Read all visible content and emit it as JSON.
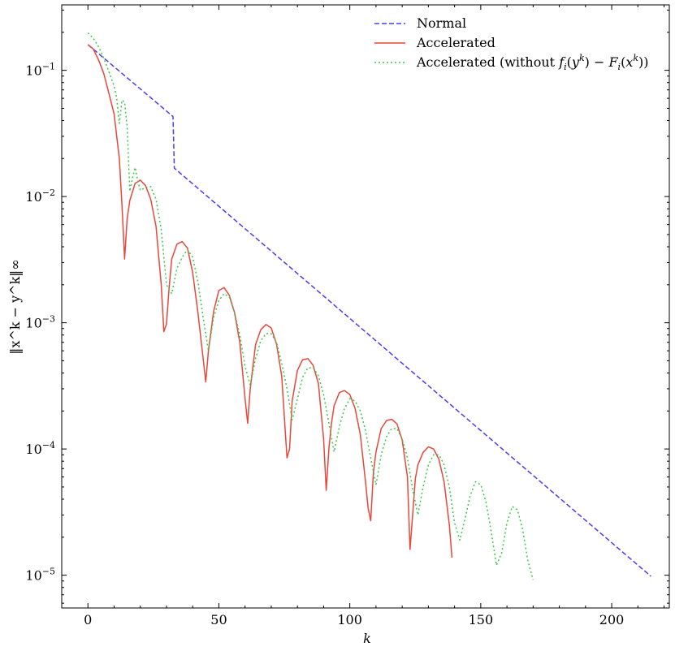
{
  "chart_data": {
    "type": "line",
    "xlabel": "k",
    "ylabel": "‖x^k − y^k‖∞",
    "y_scale": "log",
    "xlim": [
      -10,
      222
    ],
    "ylim": [
      5.5e-06,
      0.33
    ],
    "x_ticks": [
      0,
      50,
      100,
      150,
      200
    ],
    "y_ticks": [
      {
        "value": 0.1,
        "base": "10",
        "exp": "−1"
      },
      {
        "value": 0.01,
        "base": "10",
        "exp": "−2"
      },
      {
        "value": 0.001,
        "base": "10",
        "exp": "−3"
      },
      {
        "value": 0.0001,
        "base": "10",
        "exp": "−4"
      },
      {
        "value": 1e-05,
        "base": "10",
        "exp": "−5"
      }
    ],
    "grid": false,
    "legend_position": "top-right",
    "series": [
      {
        "name": "Normal",
        "color": "#4a3cf5",
        "style": "dashed",
        "x": [
          0,
          32.5,
          33,
          215
        ],
        "y": [
          0.16,
          0.043,
          0.0168,
          9.8e-06
        ]
      },
      {
        "name": "Accelerated",
        "color": "#e8473b",
        "style": "solid",
        "x": [
          0,
          2,
          4,
          6,
          8,
          10,
          11,
          12,
          13,
          14,
          15,
          16,
          18,
          20,
          22,
          24,
          26,
          28,
          29,
          30,
          31,
          32,
          34,
          36,
          38,
          40,
          42,
          44,
          45,
          46,
          48,
          50,
          52,
          54,
          56,
          58,
          60,
          61,
          62,
          64,
          66,
          68,
          70,
          72,
          74,
          76,
          77,
          78,
          80,
          82,
          84,
          86,
          88,
          90,
          91,
          92,
          93,
          94,
          96,
          98,
          100,
          102,
          104,
          106,
          107,
          108,
          109,
          110,
          112,
          114,
          116,
          118,
          120,
          122,
          123,
          124,
          125,
          126,
          128,
          130,
          132,
          134,
          136,
          138,
          139
        ],
        "y": [
          0.16,
          0.148,
          0.122,
          0.095,
          0.066,
          0.045,
          0.03,
          0.02,
          0.0085,
          0.0032,
          0.0067,
          0.0093,
          0.0127,
          0.0135,
          0.0122,
          0.0095,
          0.0058,
          0.002,
          0.00085,
          0.00098,
          0.0019,
          0.0032,
          0.0042,
          0.0044,
          0.0039,
          0.0025,
          0.0012,
          0.00052,
          0.00034,
          0.0006,
          0.00123,
          0.0018,
          0.0019,
          0.00165,
          0.0012,
          0.0007,
          0.00025,
          0.00016,
          0.0003,
          0.00067,
          0.00088,
          0.00097,
          0.00091,
          0.00068,
          0.00038,
          8.5e-05,
          0.0001,
          0.00024,
          0.00042,
          0.00051,
          0.00052,
          0.00046,
          0.00033,
          0.00012,
          4.7e-05,
          0.0001,
          0.00016,
          0.00022,
          0.00028,
          0.00029,
          0.00027,
          0.00021,
          0.00013,
          5.5e-05,
          3.4e-05,
          2.7e-05,
          6.5e-05,
          9.5e-05,
          0.000145,
          0.000168,
          0.000172,
          0.000158,
          0.000118,
          6e-05,
          1.6e-05,
          3e-05,
          5.8e-05,
          7.5e-05,
          9.4e-05,
          0.000104,
          0.0001,
          8.3e-05,
          5.5e-05,
          2.5e-05,
          1.38e-05
        ]
      },
      {
        "name": "Accelerated (without f_i(y^k) − F_i(x^k))",
        "color": "#3cc74b",
        "style": "dotted",
        "x": [
          0,
          2,
          4,
          6,
          8,
          10,
          11,
          12,
          13,
          14,
          15,
          16,
          17,
          18,
          19,
          20,
          22,
          24,
          26,
          28,
          30,
          32,
          34,
          36,
          38,
          40,
          42,
          44,
          46,
          48,
          50,
          52,
          54,
          56,
          58,
          60,
          62,
          64,
          66,
          68,
          70,
          72,
          74,
          76,
          78,
          80,
          82,
          84,
          86,
          88,
          90,
          92,
          94,
          96,
          98,
          100,
          102,
          104,
          106,
          108,
          110,
          112,
          114,
          116,
          118,
          120,
          122,
          124,
          126,
          128,
          130,
          132,
          134,
          136,
          138,
          140,
          142,
          144,
          146,
          148,
          150,
          152,
          154,
          156,
          158,
          160,
          162,
          164,
          166,
          168,
          170
        ],
        "y": [
          0.198,
          0.18,
          0.155,
          0.125,
          0.098,
          0.075,
          0.06,
          0.038,
          0.058,
          0.056,
          0.035,
          0.011,
          0.014,
          0.017,
          0.0135,
          0.0112,
          0.0118,
          0.012,
          0.0095,
          0.0055,
          0.002,
          0.0017,
          0.0027,
          0.0033,
          0.0038,
          0.0033,
          0.0021,
          0.0011,
          0.0006,
          0.0011,
          0.0015,
          0.0017,
          0.0016,
          0.0012,
          0.0008,
          0.00045,
          0.00032,
          0.00052,
          0.00072,
          0.00082,
          0.00082,
          0.0007,
          0.00048,
          0.0003,
          0.00017,
          0.00025,
          0.00037,
          0.00044,
          0.00044,
          0.00038,
          0.00027,
          0.00016,
          9.5e-05,
          0.00015,
          0.00021,
          0.00025,
          0.00024,
          0.0002,
          0.00014,
          8.5e-05,
          5.2e-05,
          9e-05,
          0.000125,
          0.000145,
          0.000145,
          0.00012,
          8.5e-05,
          4.8e-05,
          3e-05,
          5e-05,
          7.5e-05,
          9e-05,
          9e-05,
          7.5e-05,
          5e-05,
          2.6e-05,
          1.9e-05,
          2.8e-05,
          4.3e-05,
          5.5e-05,
          5.2e-05,
          3.8e-05,
          2.2e-05,
          1.2e-05,
          1.5e-05,
          2.6e-05,
          3.5e-05,
          3.3e-05,
          2.3e-05,
          1.3e-05,
          9.2e-06
        ]
      }
    ],
    "legend_entries": [
      {
        "label": "Normal",
        "color": "#4a3cf5",
        "style": "dashed"
      },
      {
        "label": "Accelerated",
        "color": "#e8473b",
        "style": "solid"
      },
      {
        "label_prefix": "Accelerated (without ",
        "f": "f",
        "i1": "i",
        "paren1": "(",
        "y": "y",
        "k1": "k",
        "mid": ") − ",
        "F": "F",
        "i2": "i",
        "paren2": "(",
        "x": "x",
        "k2": "k",
        "suffix": "))",
        "color": "#3cc74b",
        "style": "dotted"
      }
    ]
  }
}
